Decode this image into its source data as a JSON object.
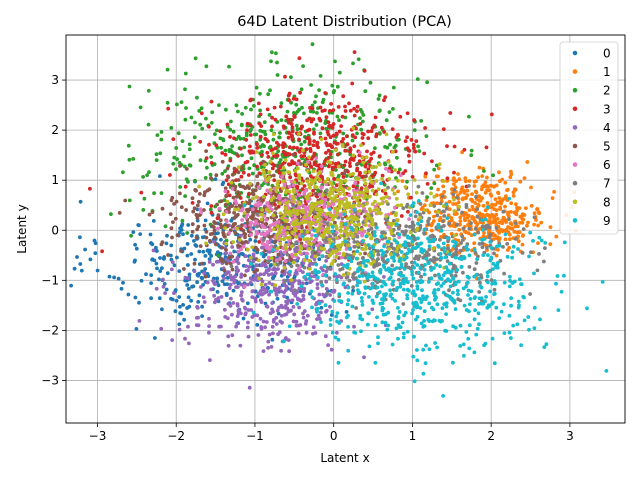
{
  "chart_data": {
    "type": "scatter",
    "title": "64D Latent Distribution (PCA)",
    "xlabel": "Latent x",
    "ylabel": "Latent y",
    "xlim": [
      -3.4,
      3.7
    ],
    "ylim": [
      -3.85,
      3.9
    ],
    "xticks": [
      -3,
      -2,
      -1,
      0,
      1,
      2,
      3
    ],
    "yticks": [
      -3,
      -2,
      -1,
      0,
      1,
      2,
      3
    ],
    "grid": true,
    "legend_position": "top-right",
    "series": [
      {
        "name": "0",
        "color": "#1f77b4",
        "center": [
          -1.4,
          -0.6
        ],
        "spread": [
          0.75,
          0.6
        ],
        "count": 380
      },
      {
        "name": "1",
        "color": "#ff7f0e",
        "center": [
          1.9,
          0.35
        ],
        "spread": [
          0.4,
          0.4
        ],
        "count": 420
      },
      {
        "name": "2",
        "color": "#2ca02c",
        "center": [
          -0.6,
          1.6
        ],
        "spread": [
          0.9,
          0.75
        ],
        "count": 500
      },
      {
        "name": "3",
        "color": "#d62728",
        "center": [
          -0.2,
          1.4
        ],
        "spread": [
          0.7,
          0.65
        ],
        "count": 520
      },
      {
        "name": "4",
        "color": "#9467bd",
        "center": [
          -0.8,
          -1.2
        ],
        "spread": [
          0.55,
          0.6
        ],
        "count": 450
      },
      {
        "name": "5",
        "color": "#8c564b",
        "center": [
          -0.9,
          0.3
        ],
        "spread": [
          0.55,
          0.5
        ],
        "count": 450
      },
      {
        "name": "6",
        "color": "#e377c2",
        "center": [
          -0.3,
          0.2
        ],
        "spread": [
          0.5,
          0.45
        ],
        "count": 420
      },
      {
        "name": "7",
        "color": "#7f7f7f",
        "center": [
          0.9,
          -0.3
        ],
        "spread": [
          0.75,
          0.45
        ],
        "count": 460
      },
      {
        "name": "8",
        "color": "#bcbd22",
        "center": [
          0.0,
          0.4
        ],
        "spread": [
          0.6,
          0.55
        ],
        "count": 520
      },
      {
        "name": "9",
        "color": "#17becf",
        "center": [
          1.1,
          -1.1
        ],
        "spread": [
          0.75,
          0.65
        ],
        "count": 600
      }
    ]
  }
}
